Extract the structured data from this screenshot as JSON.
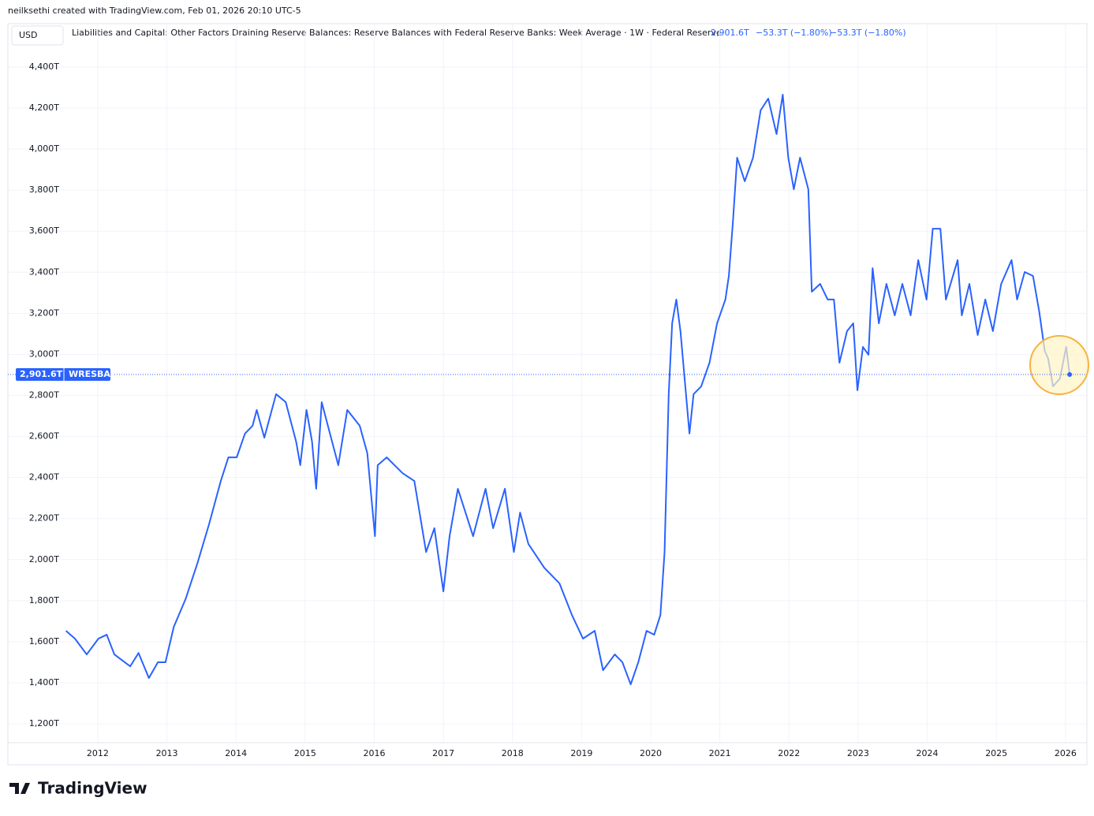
{
  "credit": "neilksethi created with TradingView.com, Feb 01, 2026 20:10 UTC-5",
  "currency": "USD",
  "brand": "TradingView",
  "chart_data": {
    "type": "line",
    "title": "Liabilities and Capital: Other Factors Draining Reserve Balances: Reserve Balances with Federal Reserve Banks: Week Average · 1W · Federal Reserve",
    "last_price": "2,901.6T",
    "change_1": "−53.3T (−1.80%)",
    "change_2": "−53.3T (−1.80%)",
    "grid": true,
    "xlim": [
      2010.7,
      2026.31
    ],
    "ylim": [
      1108,
      4611
    ],
    "xticks": [
      2012,
      2013,
      2014,
      2015,
      2016,
      2017,
      2018,
      2019,
      2020,
      2021,
      2022,
      2023,
      2024,
      2025,
      2026
    ],
    "yticks": [
      {
        "value": 1200,
        "label": "1,200T"
      },
      {
        "value": 1400,
        "label": "1,400T"
      },
      {
        "value": 1600,
        "label": "1,600T"
      },
      {
        "value": 1800,
        "label": "1,800T"
      },
      {
        "value": 2000,
        "label": "2,000T"
      },
      {
        "value": 2200,
        "label": "2,200T"
      },
      {
        "value": 2400,
        "label": "2,400T"
      },
      {
        "value": 2600,
        "label": "2,600T"
      },
      {
        "value": 2800,
        "label": "2,800T"
      },
      {
        "value": 3000,
        "label": "3,000T"
      },
      {
        "value": 3200,
        "label": "3,200T"
      },
      {
        "value": 3400,
        "label": "3,400T"
      },
      {
        "value": 3600,
        "label": "3,600T"
      },
      {
        "value": 3800,
        "label": "3,800T"
      },
      {
        "value": 4000,
        "label": "4,000T"
      },
      {
        "value": 4200,
        "label": "4,200T"
      },
      {
        "value": 4400,
        "label": "4,400T"
      }
    ],
    "x": [
      2011.54,
      2011.67,
      2011.84,
      2012.01,
      2012.13,
      2012.24,
      2012.47,
      2012.59,
      2012.74,
      2012.87,
      2012.98,
      2013.1,
      2013.27,
      2013.44,
      2013.61,
      2013.78,
      2013.89,
      2014.01,
      2014.13,
      2014.24,
      2014.3,
      2014.41,
      2014.58,
      2014.72,
      2014.87,
      2014.93,
      2015.02,
      2015.1,
      2015.16,
      2015.24,
      2015.39,
      2015.48,
      2015.61,
      2015.79,
      2015.9,
      2016.01,
      2016.05,
      2016.18,
      2016.41,
      2016.58,
      2016.75,
      2016.87,
      2017.0,
      2017.09,
      2017.21,
      2017.43,
      2017.61,
      2017.72,
      2017.89,
      2018.02,
      2018.11,
      2018.23,
      2018.46,
      2018.68,
      2018.86,
      2019.02,
      2019.19,
      2019.31,
      2019.48,
      2019.59,
      2019.71,
      2019.82,
      2019.94,
      2020.05,
      2020.14,
      2020.2,
      2020.26,
      2020.31,
      2020.37,
      2020.43,
      2020.51,
      2020.56,
      2020.62,
      2020.73,
      2020.85,
      2020.96,
      2021.08,
      2021.13,
      2021.19,
      2021.25,
      2021.36,
      2021.48,
      2021.59,
      2021.7,
      2021.82,
      2021.91,
      2021.99,
      2022.07,
      2022.16,
      2022.28,
      2022.33,
      2022.45,
      2022.56,
      2022.65,
      2022.73,
      2022.84,
      2022.93,
      2022.99,
      2023.07,
      2023.15,
      2023.21,
      2023.3,
      2023.41,
      2023.53,
      2023.64,
      2023.76,
      2023.87,
      2023.99,
      2024.08,
      2024.19,
      2024.27,
      2024.44,
      2024.5,
      2024.61,
      2024.73,
      2024.84,
      2024.95,
      2025.07,
      2025.22,
      2025.3,
      2025.41,
      2025.53,
      2025.62,
      2025.7,
      2025.75,
      2025.82,
      2025.92,
      2026.01,
      2026.06
    ],
    "series": [
      {
        "name": "WRESBAL",
        "color": "#2962ff",
        "values": [
          1653,
          1615,
          1538,
          1615,
          1634,
          1538,
          1480,
          1545,
          1423,
          1500,
          1500,
          1672,
          1807,
          1980,
          2172,
          2383,
          2498,
          2498,
          2614,
          2652,
          2729,
          2594,
          2806,
          2767,
          2575,
          2460,
          2729,
          2575,
          2345,
          2767,
          2575,
          2460,
          2729,
          2652,
          2518,
          2114,
          2460,
          2498,
          2421,
          2383,
          2037,
          2153,
          1845,
          2114,
          2345,
          2114,
          2345,
          2153,
          2345,
          2037,
          2229,
          2076,
          1960,
          1884,
          1730,
          1615,
          1653,
          1461,
          1538,
          1500,
          1392,
          1500,
          1653,
          1634,
          1730,
          2037,
          2806,
          3151,
          3267,
          3113,
          2806,
          2614,
          2806,
          2844,
          2959,
          3151,
          3267,
          3382,
          3651,
          3958,
          3843,
          3958,
          4189,
          4246,
          4073,
          4265,
          3958,
          3804,
          3958,
          3804,
          3305,
          3343,
          3267,
          3267,
          2959,
          3113,
          3151,
          2825,
          3036,
          2998,
          3420,
          3151,
          3343,
          3190,
          3343,
          3190,
          3459,
          3267,
          3612,
          3612,
          3267,
          3459,
          3190,
          3343,
          3094,
          3267,
          3113,
          3343,
          3459,
          3267,
          3401,
          3382,
          3209,
          3017,
          2978,
          2844,
          2882,
          3036,
          2901.6
        ]
      }
    ]
  }
}
